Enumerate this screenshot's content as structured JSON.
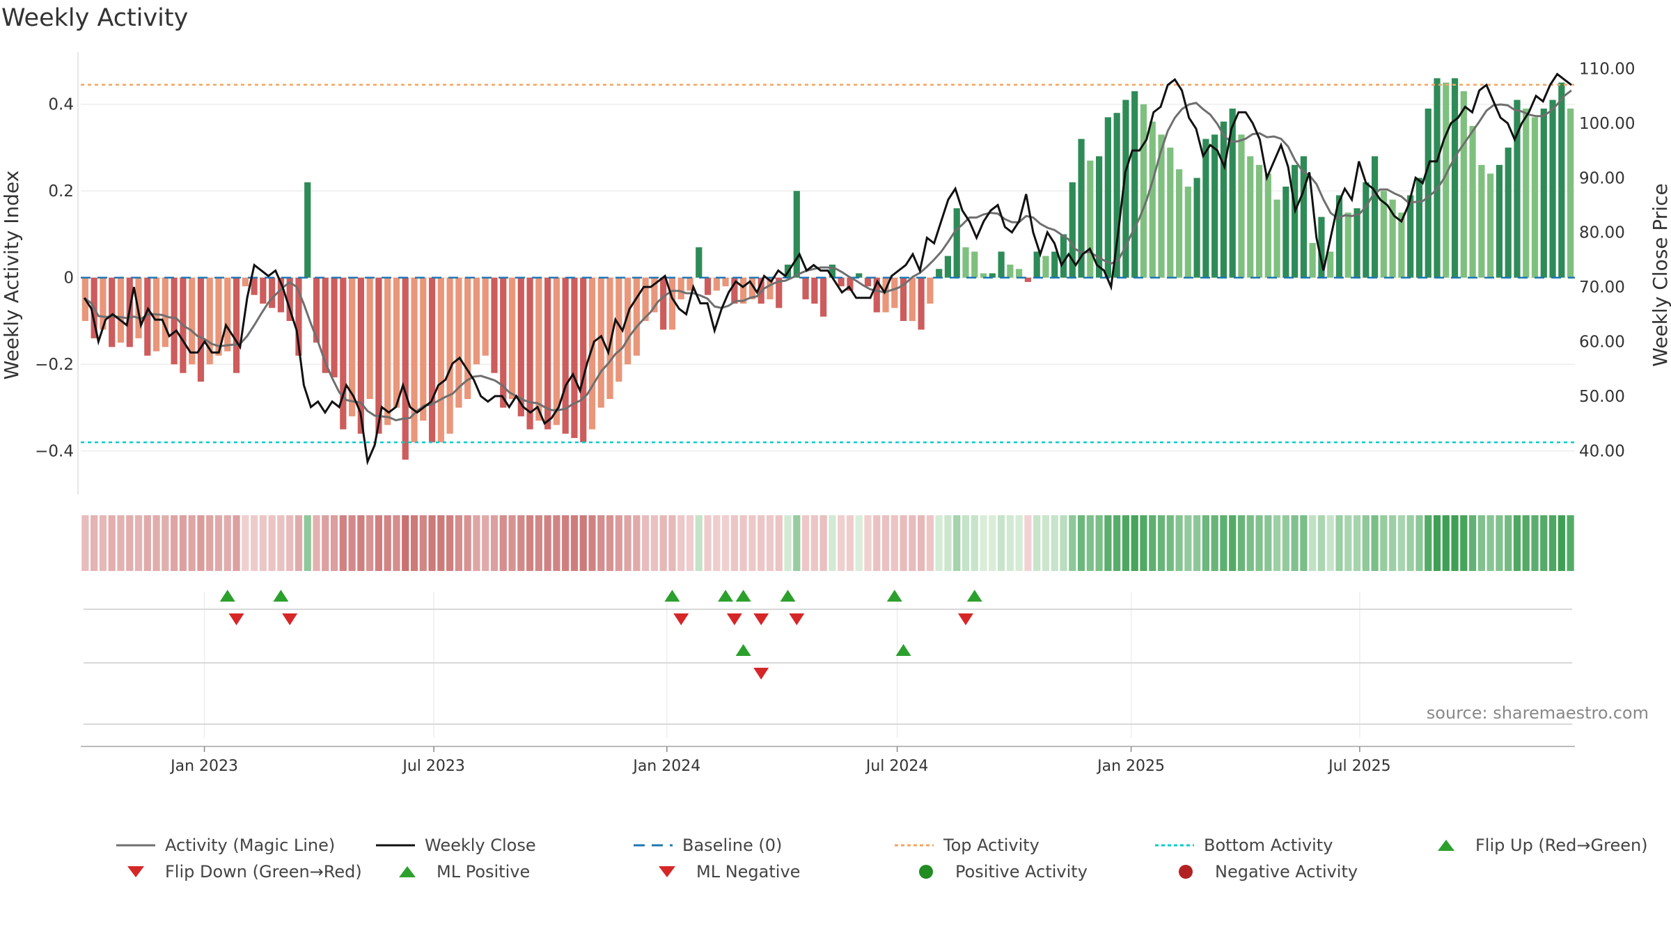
{
  "chart_data": {
    "type": "bar",
    "title": "Weekly Activity",
    "ylabel": "Weekly Activity Index",
    "y2label": "Weekly Close Price",
    "ylim": [
      -0.5,
      0.52
    ],
    "y2lim": [
      32,
      113
    ],
    "y_ticks": [
      "0.4",
      "0.2",
      "0",
      "−0.2",
      "−0.4"
    ],
    "y_tick_values": [
      0.4,
      0.2,
      0,
      -0.2,
      -0.4
    ],
    "y2_ticks": [
      "110.00",
      "100.00",
      "90.00",
      "80.00",
      "70.00",
      "60.00",
      "50.00",
      "40.00"
    ],
    "y2_tick_values": [
      110,
      100,
      90,
      80,
      70,
      60,
      50,
      40
    ],
    "x_ticks": [
      "Jan 2023",
      "Jul 2023",
      "Jan 2024",
      "Jul 2024",
      "Jan 2025",
      "Jul 2025"
    ],
    "x_tick_weeks": [
      13.4,
      39.2,
      65.4,
      91.3,
      117.6,
      143.3
    ],
    "top_activity": 0.445,
    "bottom_activity": -0.38,
    "baseline": 0,
    "grid": true,
    "legend_position": "bottom",
    "activity": [
      -0.1,
      -0.14,
      -0.12,
      -0.16,
      -0.15,
      -0.16,
      -0.14,
      -0.18,
      -0.17,
      -0.16,
      -0.2,
      -0.22,
      -0.2,
      -0.24,
      -0.2,
      -0.18,
      -0.17,
      -0.22,
      -0.02,
      -0.04,
      -0.06,
      -0.07,
      -0.08,
      -0.1,
      -0.18,
      0.22,
      -0.15,
      -0.22,
      -0.23,
      -0.35,
      -0.32,
      -0.36,
      -0.28,
      -0.36,
      -0.34,
      -0.3,
      -0.42,
      -0.38,
      -0.33,
      -0.38,
      -0.38,
      -0.36,
      -0.3,
      -0.28,
      -0.2,
      -0.18,
      -0.22,
      -0.3,
      -0.28,
      -0.32,
      -0.35,
      -0.33,
      -0.35,
      -0.34,
      -0.36,
      -0.37,
      -0.38,
      -0.35,
      -0.3,
      -0.28,
      -0.24,
      -0.2,
      -0.18,
      -0.1,
      -0.08,
      -0.12,
      -0.12,
      -0.05,
      -0.03,
      0.07,
      -0.04,
      -0.03,
      -0.02,
      -0.06,
      -0.06,
      -0.05,
      -0.06,
      -0.05,
      -0.07,
      0.03,
      0.2,
      -0.05,
      -0.06,
      -0.09,
      0.03,
      -0.02,
      -0.03,
      0.01,
      -0.02,
      -0.08,
      -0.08,
      -0.07,
      -0.1,
      -0.1,
      -0.12,
      -0.06,
      0.02,
      0.05,
      0.16,
      0.07,
      0.06,
      0.01,
      0.01,
      0.06,
      0.03,
      0.02,
      -0.01,
      0.06,
      0.05,
      0.06,
      0.1,
      0.22,
      0.32,
      0.27,
      0.28,
      0.37,
      0.38,
      0.41,
      0.43,
      0.4,
      0.36,
      0.33,
      0.3,
      0.25,
      0.21,
      0.23,
      0.32,
      0.33,
      0.36,
      0.39,
      0.33,
      0.28,
      0.26,
      0.24,
      0.18,
      0.21,
      0.26,
      0.28,
      0.08,
      0.14,
      0.06,
      0.19,
      0.15,
      0.16,
      0.22,
      0.28,
      0.2,
      0.18,
      0.15,
      0.19,
      0.23,
      0.39,
      0.46,
      0.45,
      0.46,
      0.43,
      0.35,
      0.26,
      0.24,
      0.26,
      0.3,
      0.41,
      0.39,
      0.37,
      0.39,
      0.41,
      0.45,
      0.39
    ],
    "weekly_close": [
      68,
      66,
      60,
      64,
      65,
      64,
      63,
      70,
      63,
      66,
      64,
      64,
      61,
      62,
      60,
      58,
      58,
      60,
      58,
      58,
      63,
      61,
      59,
      68,
      74,
      73,
      72,
      73,
      70,
      66,
      62,
      52,
      48,
      49,
      47,
      49,
      48,
      52,
      50,
      47,
      38,
      41,
      48,
      47,
      48,
      52,
      48,
      47,
      48,
      49,
      52,
      53,
      56,
      57,
      55,
      53,
      50,
      49,
      50,
      50,
      48,
      50,
      48,
      47,
      48,
      45,
      46,
      48,
      52,
      54,
      51,
      56,
      60,
      61,
      58,
      64,
      62,
      66,
      68,
      70,
      70,
      71,
      72,
      68,
      66,
      65,
      70,
      67,
      67,
      62,
      66,
      69,
      71,
      70,
      71,
      69,
      72,
      71,
      73,
      72,
      74,
      76,
      73,
      74,
      73,
      73,
      71,
      69,
      70,
      68,
      68,
      68,
      71,
      69,
      72,
      73,
      74,
      76,
      73,
      79,
      78,
      82,
      86,
      88,
      84,
      82,
      79,
      82,
      84,
      85,
      81,
      80,
      82,
      87,
      80,
      76,
      80,
      78,
      74,
      76,
      74,
      76,
      77,
      74,
      73,
      70,
      80,
      91,
      95,
      95,
      97,
      102,
      103,
      107,
      108,
      106,
      101,
      99,
      94,
      96,
      95,
      92,
      99,
      102,
      102,
      100,
      97,
      90,
      93,
      96,
      92,
      84,
      87,
      91,
      79,
      73,
      79,
      85,
      88,
      86,
      93,
      89,
      88,
      86,
      85,
      83,
      82,
      85,
      90,
      89,
      93,
      93,
      97,
      100,
      101,
      103,
      102,
      106,
      107,
      104,
      101,
      100,
      97,
      100,
      102,
      105,
      104,
      107,
      109,
      108,
      107
    ],
    "series": [
      {
        "name": "Activity (Magic Line)"
      },
      {
        "name": "Weekly Close"
      },
      {
        "name": "Baseline (0)"
      },
      {
        "name": "Top Activity"
      },
      {
        "name": "Bottom Activity"
      },
      {
        "name": "Flip Up (Red→Green)"
      },
      {
        "name": "Flip Down (Green→Red)"
      },
      {
        "name": "ML Positive"
      },
      {
        "name": "ML Negative"
      },
      {
        "name": "Positive Activity"
      },
      {
        "name": "Negative Activity"
      }
    ],
    "flip_up_weeks": [
      16,
      22,
      66,
      72,
      74,
      79,
      91,
      100
    ],
    "flip_down_weeks": [
      17,
      23,
      67,
      73,
      76,
      80,
      99
    ],
    "ml_positive_weeks": [
      74,
      92
    ],
    "ml_negative_weeks": [
      76
    ],
    "colors": {
      "strong_green": "#2e8b57",
      "light_green": "#7fc07f",
      "strong_red": "#cd5c5c",
      "light_red": "#e9967a",
      "magic_line": "#6f6f6f",
      "close_line": "#111111",
      "baseline": "#1f77b4",
      "top_activity": "#f4a460",
      "bottom_activity": "#00ced1",
      "flip_up": "#2ca02c",
      "flip_down": "#d62728"
    }
  },
  "source": "source: sharemaestro.com"
}
